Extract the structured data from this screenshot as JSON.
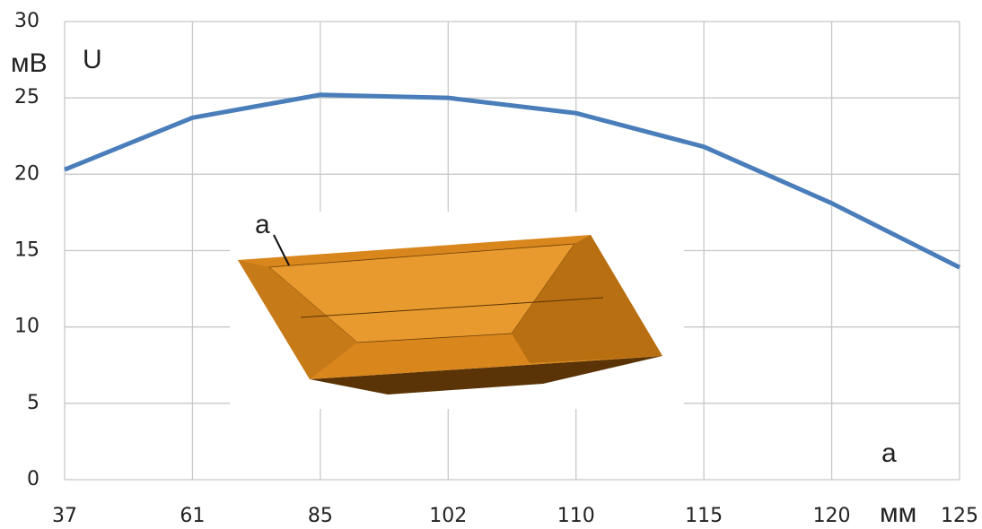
{
  "chart_data": {
    "type": "line",
    "categories": [
      "37",
      "61",
      "85",
      "102",
      "110",
      "115",
      "120",
      "125"
    ],
    "series": [
      {
        "color": "#4a7ebb",
        "values": [
          20.3,
          23.7,
          25.2,
          25.0,
          24.0,
          21.8,
          18.1,
          13.9
        ]
      }
    ],
    "ylim": [
      0,
      30
    ],
    "yticks": [
      0,
      5,
      10,
      15,
      20,
      25,
      30
    ],
    "grid": true,
    "y_unit": "мВ",
    "x_unit": "мм",
    "series_label": "U",
    "inset_label": "а",
    "figure_label": "а"
  }
}
